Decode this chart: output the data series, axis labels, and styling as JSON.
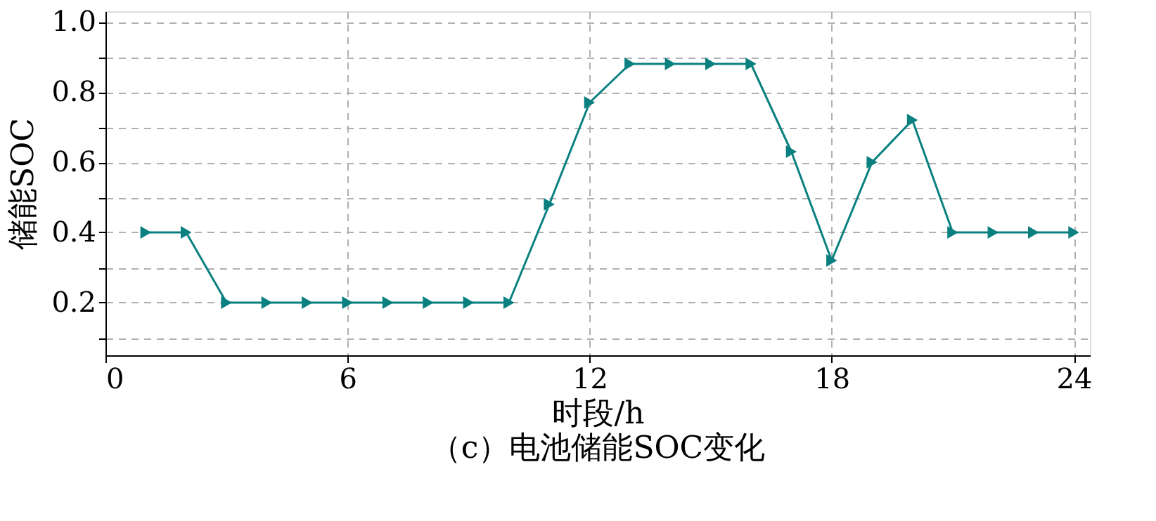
{
  "chart_data": {
    "type": "line",
    "title": "（c）电池储能SOC变化",
    "xlabel": "时段/h",
    "ylabel": "储能SOC",
    "x": [
      1,
      2,
      3,
      4,
      5,
      6,
      7,
      8,
      9,
      10,
      11,
      12,
      13,
      14,
      15,
      16,
      17,
      18,
      19,
      20,
      21,
      22,
      23,
      24
    ],
    "series": [
      {
        "color": "#0a8080",
        "values": [
          0.4,
          0.4,
          0.2,
          0.2,
          0.2,
          0.2,
          0.2,
          0.2,
          0.2,
          0.2,
          0.48,
          0.77,
          0.88,
          0.88,
          0.88,
          0.88,
          0.63,
          0.32,
          0.6,
          0.72,
          0.4,
          0.4,
          0.4,
          0.4
        ]
      }
    ],
    "xlim": [
      0,
      24.4
    ],
    "xticks": [
      0,
      6,
      12,
      18,
      24
    ],
    "ylim": [
      0.05,
      1.03
    ],
    "yticks": [
      {
        "value": 0.1,
        "label": null
      },
      0.2,
      {
        "value": 0.3,
        "label": null
      },
      0.4,
      {
        "value": 0.5,
        "label": null
      },
      0.6,
      {
        "value": 0.7,
        "label": null
      },
      0.8,
      {
        "value": 0.9,
        "label": null
      },
      {
        "value": 1,
        "label": "1.0"
      }
    ],
    "grid": true,
    "marker": "triangle",
    "line_style": "solid"
  }
}
